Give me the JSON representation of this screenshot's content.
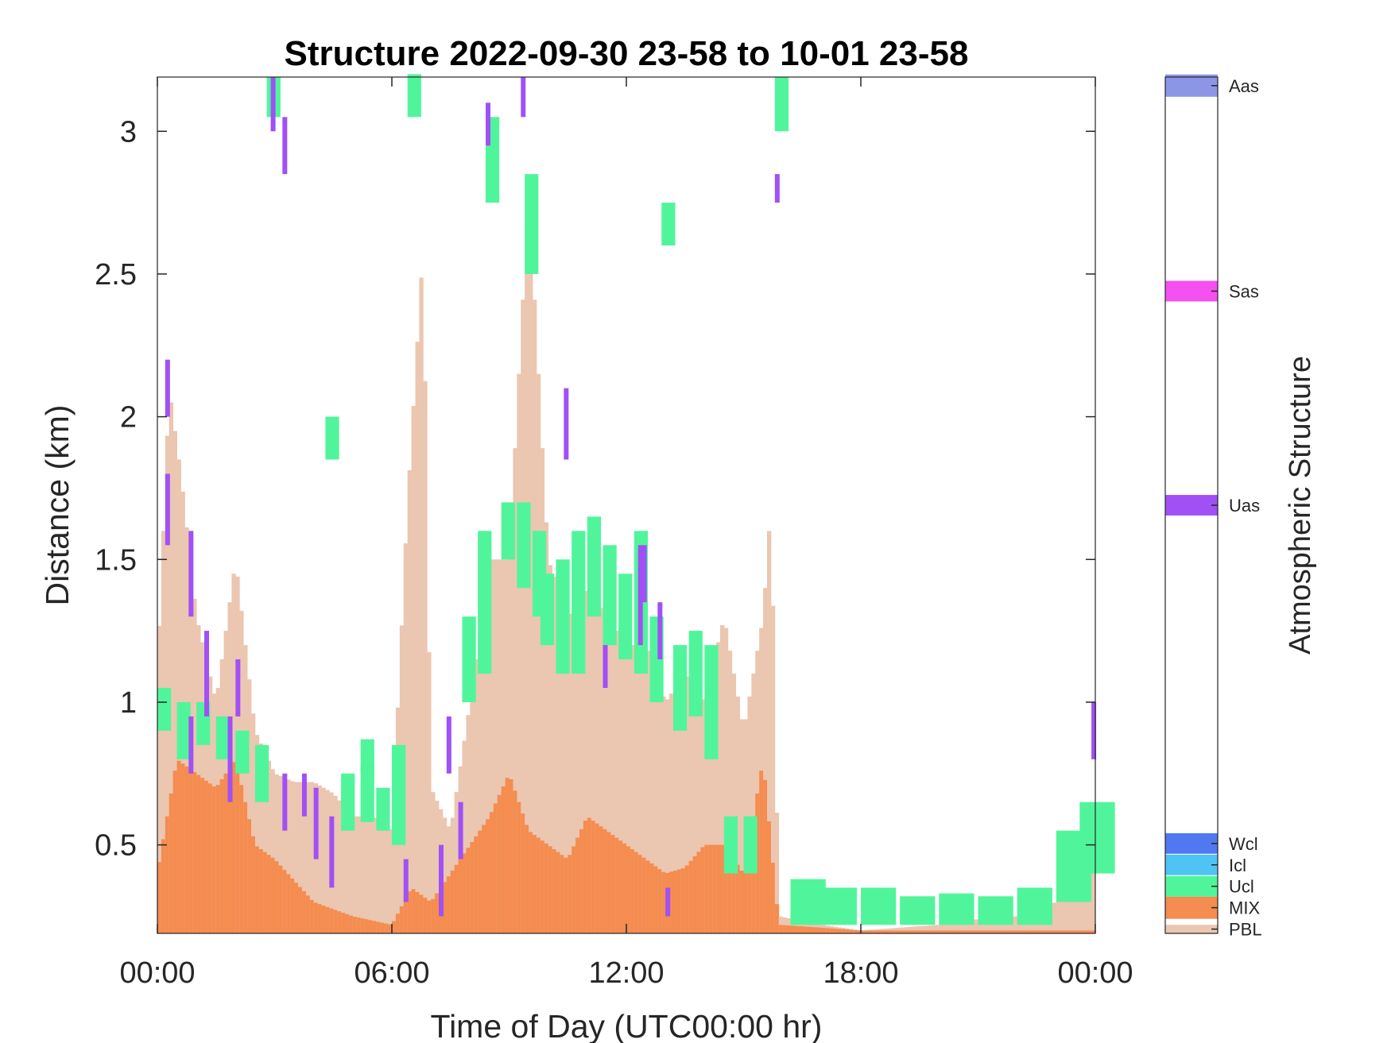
{
  "chart_data": {
    "type": "heatmap",
    "title": "Structure 2022-09-30 23-58 to 10-01 23-58",
    "xlabel": "Time of Day (UTC00:00 hr)",
    "ylabel": "Distance (km)",
    "x_unit": "hours",
    "xlim": [
      0,
      24
    ],
    "ylim": [
      0.19,
      3.19
    ],
    "x_ticks": [
      0,
      6,
      12,
      18,
      24
    ],
    "x_tick_labels": [
      "00:00",
      "06:00",
      "12:00",
      "18:00",
      "00:00"
    ],
    "y_ticks": [
      0.5,
      1,
      1.5,
      2,
      2.5,
      3
    ],
    "y_tick_labels": [
      "0.5",
      "1",
      "1.5",
      "2",
      "2.5",
      "3"
    ],
    "grid": false,
    "colorbar": {
      "title": "Atmospheric Structure",
      "categories": [
        {
          "label": "PBL",
          "color": "#EBC6B0"
        },
        {
          "label": "MIX",
          "color": "#F58C50"
        },
        {
          "label": "Ucl",
          "color": "#50F59B"
        },
        {
          "label": "Icl",
          "color": "#50C3F5"
        },
        {
          "label": "Wcl",
          "color": "#5078F0"
        },
        {
          "label": "Uas",
          "color": "#A050F5"
        },
        {
          "label": "Sas",
          "color": "#F550F0"
        },
        {
          "label": "Aas",
          "color": "#8C96E6"
        }
      ]
    },
    "pbl_profile": [
      [
        0.0,
        1.1
      ],
      [
        0.3,
        2.1
      ],
      [
        0.6,
        1.8
      ],
      [
        1.0,
        1.3
      ],
      [
        1.5,
        1.0
      ],
      [
        2.0,
        1.5
      ],
      [
        2.5,
        0.9
      ],
      [
        3.0,
        0.75
      ],
      [
        3.5,
        0.72
      ],
      [
        4.0,
        0.72
      ],
      [
        4.5,
        0.68
      ],
      [
        5.0,
        0.6
      ],
      [
        5.5,
        0.6
      ],
      [
        6.0,
        0.55
      ],
      [
        6.4,
        1.7
      ],
      [
        6.8,
        2.6
      ],
      [
        7.0,
        0.7
      ],
      [
        7.5,
        0.55
      ],
      [
        8.0,
        1.0
      ],
      [
        8.5,
        1.5
      ],
      [
        9.0,
        1.5
      ],
      [
        9.5,
        2.8
      ],
      [
        10.0,
        1.5
      ],
      [
        10.5,
        1.3
      ],
      [
        11.0,
        1.4
      ],
      [
        11.5,
        1.3
      ],
      [
        12.0,
        1.2
      ],
      [
        12.5,
        1.2
      ],
      [
        13.0,
        1.0
      ],
      [
        13.5,
        1.1
      ],
      [
        14.0,
        1.0
      ],
      [
        14.5,
        1.3
      ],
      [
        15.0,
        0.9
      ],
      [
        15.5,
        1.3
      ],
      [
        15.7,
        1.7
      ],
      [
        15.9,
        0.25
      ],
      [
        17.0,
        0.22
      ],
      [
        18.0,
        0.2
      ],
      [
        19.0,
        0.21
      ],
      [
        20.0,
        0.22
      ],
      [
        21.0,
        0.24
      ],
      [
        22.0,
        0.25
      ],
      [
        23.0,
        0.3
      ],
      [
        24.0,
        0.45
      ]
    ],
    "mix_profile": [
      [
        0.0,
        0.4
      ],
      [
        0.5,
        0.8
      ],
      [
        1.0,
        0.75
      ],
      [
        1.5,
        0.7
      ],
      [
        2.0,
        0.8
      ],
      [
        2.5,
        0.5
      ],
      [
        3.0,
        0.45
      ],
      [
        4.0,
        0.3
      ],
      [
        5.0,
        0.25
      ],
      [
        6.0,
        0.22
      ],
      [
        6.5,
        0.35
      ],
      [
        7.0,
        0.3
      ],
      [
        7.5,
        0.4
      ],
      [
        8.0,
        0.5
      ],
      [
        8.5,
        0.6
      ],
      [
        9.0,
        0.75
      ],
      [
        9.5,
        0.55
      ],
      [
        10.0,
        0.5
      ],
      [
        10.5,
        0.45
      ],
      [
        11.0,
        0.6
      ],
      [
        11.5,
        0.55
      ],
      [
        12.0,
        0.5
      ],
      [
        12.5,
        0.45
      ],
      [
        13.0,
        0.4
      ],
      [
        13.5,
        0.42
      ],
      [
        14.0,
        0.5
      ],
      [
        14.5,
        0.5
      ],
      [
        15.0,
        0.4
      ],
      [
        15.5,
        0.8
      ],
      [
        15.9,
        0.22
      ],
      [
        17.0,
        0.21
      ],
      [
        18.0,
        0.2
      ],
      [
        24.0,
        0.2
      ]
    ],
    "ucl_segments": [
      [
        0.0,
        0.9,
        1.05
      ],
      [
        0.5,
        0.8,
        1.0
      ],
      [
        1.0,
        0.85,
        1.0
      ],
      [
        1.5,
        0.8,
        0.95
      ],
      [
        2.0,
        0.75,
        0.9
      ],
      [
        2.5,
        0.65,
        0.85
      ],
      [
        4.7,
        0.55,
        0.75
      ],
      [
        5.2,
        0.58,
        0.78
      ],
      [
        5.6,
        0.55,
        0.7
      ],
      [
        6.0,
        0.5,
        0.85
      ],
      [
        6.4,
        3.05,
        3.2
      ],
      [
        7.8,
        1.0,
        1.3
      ],
      [
        8.2,
        1.1,
        1.6
      ],
      [
        8.4,
        2.75,
        3.05
      ],
      [
        8.8,
        1.5,
        1.7
      ],
      [
        9.2,
        1.4,
        1.7
      ],
      [
        9.4,
        2.5,
        2.85
      ],
      [
        9.6,
        1.3,
        1.6
      ],
      [
        9.8,
        1.2,
        1.45
      ],
      [
        10.2,
        1.1,
        1.5
      ],
      [
        10.6,
        1.1,
        1.6
      ],
      [
        11.0,
        1.3,
        1.65
      ],
      [
        11.4,
        1.2,
        1.55
      ],
      [
        11.8,
        1.15,
        1.45
      ],
      [
        12.2,
        1.1,
        1.6
      ],
      [
        12.6,
        1.0,
        1.3
      ],
      [
        12.9,
        2.6,
        2.75
      ],
      [
        13.2,
        0.9,
        1.2
      ],
      [
        13.6,
        0.95,
        1.25
      ],
      [
        14.0,
        0.8,
        1.2
      ],
      [
        14.5,
        0.4,
        0.6
      ],
      [
        15.0,
        0.4,
        0.6
      ],
      [
        15.8,
        3.0,
        3.19
      ],
      [
        16.2,
        0.22,
        0.38
      ],
      [
        17.0,
        0.22,
        0.35
      ],
      [
        18.0,
        0.22,
        0.35
      ],
      [
        19.0,
        0.22,
        0.32
      ],
      [
        20.0,
        0.22,
        0.33
      ],
      [
        21.0,
        0.22,
        0.32
      ],
      [
        22.0,
        0.22,
        0.35
      ],
      [
        23.0,
        0.3,
        0.55
      ],
      [
        23.6,
        0.4,
        0.65
      ],
      [
        4.3,
        1.85,
        2.0
      ],
      [
        5.2,
        0.75,
        0.87
      ],
      [
        2.8,
        3.05,
        3.19
      ]
    ],
    "uas_segments": [
      [
        0.2,
        2.0,
        2.2
      ],
      [
        0.2,
        1.55,
        1.8
      ],
      [
        0.8,
        1.3,
        1.6
      ],
      [
        0.8,
        0.75,
        0.95
      ],
      [
        1.2,
        0.95,
        1.25
      ],
      [
        1.8,
        0.65,
        0.95
      ],
      [
        2.0,
        0.95,
        1.15
      ],
      [
        2.9,
        3.0,
        3.19
      ],
      [
        3.2,
        2.85,
        3.05
      ],
      [
        3.2,
        0.55,
        0.75
      ],
      [
        3.7,
        0.6,
        0.75
      ],
      [
        4.0,
        0.45,
        0.7
      ],
      [
        4.4,
        0.35,
        0.6
      ],
      [
        6.3,
        0.3,
        0.45
      ],
      [
        7.2,
        0.25,
        0.5
      ],
      [
        7.4,
        0.75,
        0.95
      ],
      [
        7.7,
        0.45,
        0.65
      ],
      [
        8.4,
        2.95,
        3.1
      ],
      [
        9.3,
        3.05,
        3.19
      ],
      [
        10.4,
        1.85,
        2.1
      ],
      [
        11.4,
        1.05,
        1.2
      ],
      [
        12.3,
        1.2,
        1.55
      ],
      [
        12.4,
        1.35,
        1.55
      ],
      [
        12.8,
        1.15,
        1.35
      ],
      [
        13.0,
        0.25,
        0.35
      ],
      [
        15.8,
        2.75,
        2.85
      ],
      [
        23.9,
        0.8,
        1.0
      ]
    ]
  }
}
